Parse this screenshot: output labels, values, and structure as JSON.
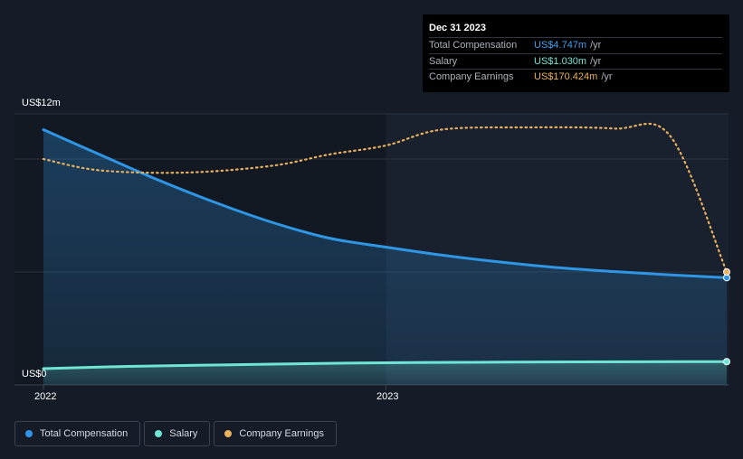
{
  "tooltip": {
    "date": "Dec 31 2023",
    "rows": [
      {
        "label": "Total Compensation",
        "value": "US$4.747m",
        "unit": "/yr",
        "color": "#3ea0ee"
      },
      {
        "label": "Salary",
        "value": "US$1.030m",
        "unit": "/yr",
        "color": "#6fe5d5"
      },
      {
        "label": "Company Earnings",
        "value": "US$170.424m",
        "unit": "/yr",
        "color": "#e9b15e"
      }
    ]
  },
  "axis": {
    "y_top": "US$12m",
    "y_bottom": "US$0",
    "x_ticks": [
      "2022",
      "2023"
    ]
  },
  "legend": {
    "items": [
      {
        "label": "Total Compensation",
        "color": "#2f96e6"
      },
      {
        "label": "Salary",
        "color": "#6fe5d5"
      },
      {
        "label": "Company Earnings",
        "color": "#e9b15e"
      }
    ]
  },
  "chart_data": {
    "type": "line",
    "ylim": [
      0,
      12
    ],
    "xlim": [
      "2021-12-31",
      "2023-12-31"
    ],
    "y_unit": "US$m",
    "shaded_from": "2023-01-01",
    "series": [
      {
        "name": "Total Compensation",
        "color": "#2f96e6",
        "filled": true,
        "points": [
          [
            "2021-12-31",
            11.3
          ],
          [
            "2022-03-01",
            10.2
          ],
          [
            "2022-05-01",
            9.1
          ],
          [
            "2022-07-01",
            8.1
          ],
          [
            "2022-09-01",
            7.2
          ],
          [
            "2022-11-01",
            6.5
          ],
          [
            "2023-01-01",
            6.1
          ],
          [
            "2023-03-01",
            5.75
          ],
          [
            "2023-05-01",
            5.45
          ],
          [
            "2023-07-01",
            5.2
          ],
          [
            "2023-09-01",
            5.02
          ],
          [
            "2023-11-01",
            4.87
          ],
          [
            "2023-12-31",
            4.747
          ]
        ]
      },
      {
        "name": "Salary",
        "color": "#6fe5d5",
        "filled": true,
        "points": [
          [
            "2021-12-31",
            0.72
          ],
          [
            "2022-04-01",
            0.82
          ],
          [
            "2022-08-01",
            0.9
          ],
          [
            "2022-12-01",
            0.97
          ],
          [
            "2023-04-01",
            1.0
          ],
          [
            "2023-08-01",
            1.02
          ],
          [
            "2023-12-31",
            1.03
          ]
        ]
      },
      {
        "name": "Company Earnings",
        "color": "#e9b15e",
        "dashed": true,
        "scaled_to_axis_max": 12,
        "points": [
          [
            "2021-12-31",
            10.0
          ],
          [
            "2022-03-01",
            9.5
          ],
          [
            "2022-06-01",
            9.4
          ],
          [
            "2022-09-01",
            9.7
          ],
          [
            "2022-11-01",
            10.2
          ],
          [
            "2023-01-01",
            10.6
          ],
          [
            "2023-03-01",
            11.3
          ],
          [
            "2023-06-01",
            11.4
          ],
          [
            "2023-09-01",
            11.35
          ],
          [
            "2023-11-01",
            11.0
          ],
          [
            "2023-12-31",
            5.0
          ]
        ]
      }
    ]
  }
}
